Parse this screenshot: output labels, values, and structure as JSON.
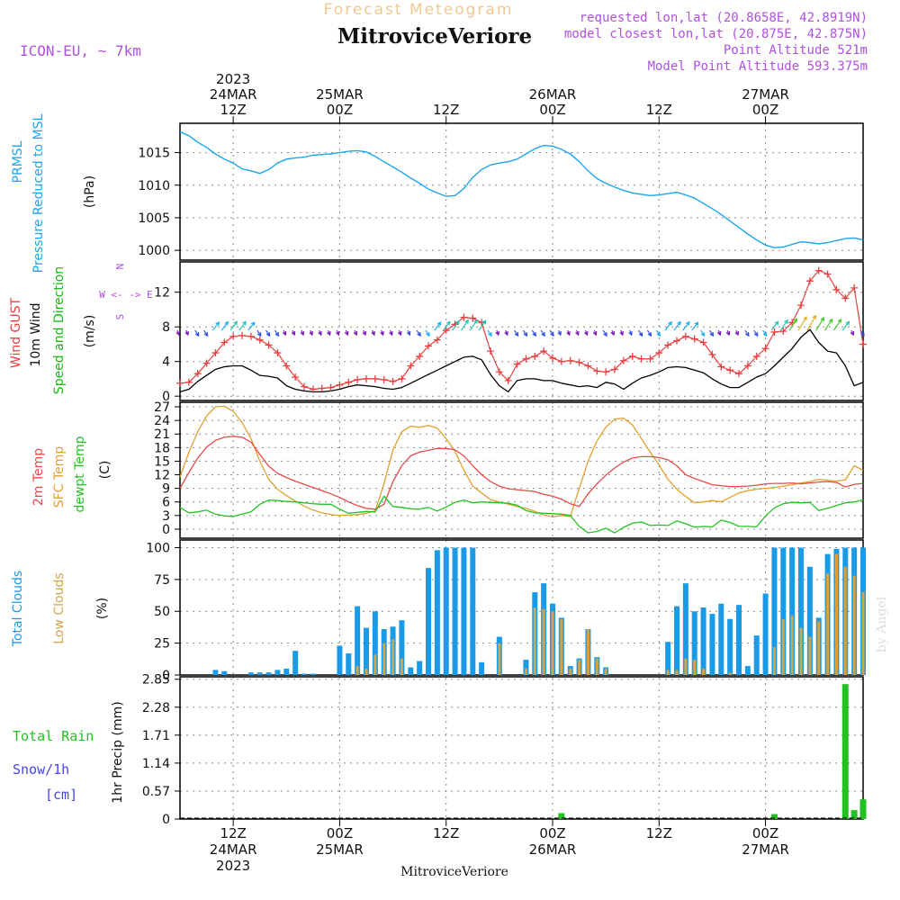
{
  "header": {
    "super_title": "Forecast Meteogram",
    "location": "MitroviceVeriore",
    "model": "ICON-EU, ~ 7km",
    "requested": "requested lon,lat (20.8658E, 42.8919N)",
    "closest": "model closest lon,lat (20.875E, 42.875N)",
    "point_alt": "Point Altitude 521m",
    "model_alt": "Model Point Altitude 593.375m",
    "credit": "by Angel"
  },
  "colors": {
    "pressure": "#1ba5ec",
    "gust": "#e84040",
    "wind": "#000000",
    "wind_label3": "#16b816",
    "temp2m": "#e84a4a",
    "sfc": "#e0a12e",
    "dew": "#22c422",
    "total_cloud": "#1a9be8",
    "low_cloud": "#d0a548",
    "rain": "#22c022",
    "snow": "#4444ee",
    "meta": "#b050e0",
    "title_orange": "#f0c890"
  },
  "time_axis": {
    "top_labels": [
      {
        "h": 12,
        "lines": [
          "2023",
          "24MAR",
          "12Z"
        ]
      },
      {
        "h": 24,
        "lines": [
          "25MAR",
          "00Z"
        ]
      },
      {
        "h": 36,
        "lines": [
          "12Z"
        ]
      },
      {
        "h": 48,
        "lines": [
          "26MAR",
          "00Z"
        ]
      },
      {
        "h": 60,
        "lines": [
          "12Z"
        ]
      },
      {
        "h": 72,
        "lines": [
          "27MAR",
          "00Z"
        ]
      }
    ],
    "bottom_labels": [
      {
        "h": 12,
        "lines": [
          "12Z",
          "24MAR",
          "2023"
        ]
      },
      {
        "h": 24,
        "lines": [
          "00Z",
          "25MAR"
        ]
      },
      {
        "h": 36,
        "lines": [
          "12Z"
        ]
      },
      {
        "h": 48,
        "lines": [
          "00Z",
          "26MAR"
        ]
      },
      {
        "h": 60,
        "lines": [
          "12Z"
        ]
      },
      {
        "h": 72,
        "lines": [
          "00Z",
          "27MAR"
        ]
      }
    ],
    "bottom_caption": "MitroviceVeriore"
  },
  "panels": {
    "pressure": {
      "labels": [
        "PRMSL",
        "Pressure Reduced to MSL"
      ],
      "unit": "(hPa)",
      "ylim": [
        998.5,
        1019.5
      ],
      "ticks": [
        1000,
        1005,
        1010,
        1015
      ]
    },
    "wind": {
      "labels": [
        "Wind GUST",
        "10m Wind",
        "Speed and Direction"
      ],
      "unit": "(m/s)",
      "compass": [
        "N",
        "W <- -> E",
        "S"
      ],
      "ylim": [
        -0.5,
        15.5
      ],
      "ticks": [
        0,
        4,
        8,
        12
      ]
    },
    "temp": {
      "labels": [
        "2m Temp",
        "SFC Temp",
        "dewpt Temp"
      ],
      "unit": "(C)",
      "ylim": [
        -2,
        28
      ],
      "ticks": [
        0,
        3,
        6,
        9,
        12,
        15,
        18,
        21,
        24,
        27
      ]
    },
    "cloud": {
      "labels": [
        "Total Clouds",
        "Low Clouds"
      ],
      "unit": "(%)",
      "ylim": [
        0,
        106
      ],
      "ticks": [
        0,
        25,
        50,
        75,
        100
      ]
    },
    "precip": {
      "labels": [
        "Total Rain",
        "Snow/1h",
        "[cm]"
      ],
      "unit": "1hr Precip (mm)",
      "ylim": [
        0,
        2.9
      ],
      "ticks": [
        "0",
        "0.57",
        "1.14",
        "1.71",
        "2.28",
        "2.85"
      ]
    }
  },
  "chart_data": {
    "type": "meteogram",
    "title": "MitroviceVeriore",
    "x_units": "forecast hour from 2023-03-24 00Z",
    "xlim": [
      6,
      83
    ],
    "pressure": {
      "x": [
        6,
        7,
        8,
        9,
        10,
        11,
        12,
        13,
        14,
        15,
        16,
        17,
        18,
        19,
        20,
        21,
        22,
        23,
        24,
        25,
        26,
        27,
        28,
        29,
        30,
        31,
        32,
        33,
        34,
        35,
        36,
        37,
        38,
        39,
        40,
        41,
        42,
        43,
        44,
        45,
        46,
        47,
        48,
        49,
        50,
        51,
        52,
        53,
        54,
        55,
        56,
        57,
        58,
        59,
        60,
        61,
        62,
        63,
        64,
        65,
        66,
        67,
        68,
        69,
        70,
        71,
        72,
        73,
        74,
        75,
        76,
        77,
        78,
        79,
        80,
        81,
        82,
        83
      ],
      "values": [
        1018.2,
        1017.6,
        1016.6,
        1015.8,
        1014.8,
        1014.0,
        1013.4,
        1012.5,
        1012.2,
        1011.8,
        1012.4,
        1013.4,
        1014.0,
        1014.2,
        1014.3,
        1014.6,
        1014.7,
        1014.8,
        1015.0,
        1015.2,
        1015.3,
        1015.1,
        1014.4,
        1013.6,
        1012.8,
        1012.0,
        1011.1,
        1010.3,
        1009.4,
        1008.8,
        1008.3,
        1008.4,
        1009.5,
        1011.2,
        1012.4,
        1013.1,
        1013.4,
        1013.6,
        1014.0,
        1014.8,
        1015.6,
        1016.1,
        1016.0,
        1015.5,
        1014.8,
        1013.6,
        1012.2,
        1011.0,
        1010.3,
        1009.7,
        1009.2,
        1008.8,
        1008.6,
        1008.4,
        1008.5,
        1008.7,
        1008.9,
        1008.5,
        1008.0,
        1007.2,
        1006.4,
        1005.5,
        1004.5,
        1003.5,
        1002.5,
        1001.6,
        1000.8,
        1000.4,
        1000.5,
        1000.9,
        1001.3,
        1001.2,
        1001.0,
        1001.2,
        1001.5,
        1001.8,
        1001.9,
        1001.6
      ]
    },
    "wind": {
      "x": [
        6,
        7,
        8,
        9,
        10,
        11,
        12,
        13,
        14,
        15,
        16,
        17,
        18,
        19,
        20,
        21,
        22,
        23,
        24,
        25,
        26,
        27,
        28,
        29,
        30,
        31,
        32,
        33,
        34,
        35,
        36,
        37,
        38,
        39,
        40,
        41,
        42,
        43,
        44,
        45,
        46,
        47,
        48,
        49,
        50,
        51,
        52,
        53,
        54,
        55,
        56,
        57,
        58,
        59,
        60,
        61,
        62,
        63,
        64,
        65,
        66,
        67,
        68,
        69,
        70,
        71,
        72,
        73,
        74,
        75,
        76,
        77,
        78,
        79,
        80,
        81,
        82,
        83
      ],
      "gust": [
        1.5,
        1.6,
        2.6,
        3.8,
        5.0,
        6.2,
        6.9,
        7.0,
        6.9,
        6.5,
        5.9,
        5.0,
        3.5,
        2.2,
        1.1,
        0.8,
        0.9,
        1.0,
        1.3,
        1.6,
        1.9,
        2.0,
        2.0,
        1.9,
        1.7,
        2.0,
        3.5,
        4.6,
        5.8,
        6.5,
        7.6,
        8.3,
        9.1,
        9.0,
        8.5,
        5.2,
        2.8,
        1.8,
        3.7,
        4.3,
        4.6,
        5.2,
        4.4,
        4.0,
        4.1,
        3.9,
        3.5,
        2.9,
        2.8,
        3.1,
        4.1,
        4.6,
        4.3,
        4.3,
        5.0,
        5.9,
        6.4,
        6.9,
        6.6,
        6.2,
        4.8,
        3.4,
        3.0,
        2.6,
        3.5,
        4.6,
        5.5,
        7.4,
        7.5,
        8.5,
        10.5,
        13.3,
        14.5,
        14.1,
        12.3,
        11.3,
        12.5,
        6.0
      ],
      "speed": [
        0.5,
        0.8,
        1.7,
        2.4,
        3.1,
        3.4,
        3.5,
        3.5,
        3.0,
        2.4,
        2.3,
        2.1,
        1.2,
        0.8,
        0.6,
        0.5,
        0.5,
        0.6,
        0.8,
        1.1,
        1.3,
        1.2,
        1.1,
        0.9,
        0.8,
        1.0,
        1.5,
        2.0,
        2.5,
        3.0,
        3.5,
        4.0,
        4.5,
        4.6,
        4.2,
        2.5,
        1.2,
        0.5,
        1.8,
        2.0,
        2.0,
        1.8,
        1.8,
        1.5,
        1.3,
        1.1,
        1.2,
        1.0,
        1.6,
        1.4,
        0.8,
        1.5,
        2.1,
        2.4,
        2.8,
        3.3,
        3.4,
        3.3,
        3.0,
        2.7,
        2.0,
        1.4,
        1.0,
        1.0,
        1.6,
        2.2,
        2.6,
        3.5,
        4.5,
        5.5,
        6.8,
        7.7,
        6.2,
        5.2,
        5.0,
        3.5,
        1.2,
        1.6
      ]
    },
    "temperature": {
      "x": [
        6,
        7,
        8,
        9,
        10,
        11,
        12,
        13,
        14,
        15,
        16,
        17,
        18,
        19,
        20,
        21,
        22,
        23,
        24,
        25,
        26,
        27,
        28,
        29,
        30,
        31,
        32,
        33,
        34,
        35,
        36,
        37,
        38,
        39,
        40,
        41,
        42,
        43,
        44,
        45,
        46,
        47,
        48,
        49,
        50,
        51,
        52,
        53,
        54,
        55,
        56,
        57,
        58,
        59,
        60,
        61,
        62,
        63,
        64,
        65,
        66,
        67,
        68,
        69,
        70,
        71,
        72,
        73,
        74,
        75,
        76,
        77,
        78,
        79,
        80,
        81,
        82,
        83
      ],
      "t2m": [
        9.0,
        12.5,
        15.7,
        18.1,
        19.6,
        20.3,
        20.5,
        20.3,
        19.2,
        16.5,
        13.9,
        12.3,
        11.4,
        10.6,
        9.9,
        9.2,
        8.5,
        7.8,
        7.0,
        6.0,
        5.2,
        4.6,
        4.4,
        5.5,
        10.5,
        14.0,
        16.2,
        17.0,
        17.4,
        17.8,
        17.8,
        17.5,
        16.2,
        14.0,
        12.0,
        10.5,
        9.5,
        8.9,
        8.7,
        8.5,
        8.3,
        7.7,
        7.3,
        6.6,
        5.6,
        5.0,
        7.8,
        10.0,
        11.9,
        13.5,
        14.8,
        15.7,
        16.0,
        16.0,
        15.8,
        15.3,
        14.0,
        12.0,
        11.2,
        10.5,
        9.8,
        9.6,
        9.4,
        9.4,
        9.5,
        9.7,
        10.0,
        10.1,
        10.1,
        10.2,
        10.0,
        10.2,
        10.4,
        10.5,
        10.3,
        9.3,
        9.9,
        10.1
      ],
      "sfc": [
        11.5,
        17.0,
        21.5,
        25.0,
        27.0,
        27.1,
        26.0,
        23.5,
        20.0,
        15.0,
        11.0,
        8.8,
        7.4,
        6.2,
        5.1,
        4.2,
        3.6,
        3.2,
        3.0,
        3.1,
        3.2,
        3.5,
        4.0,
        10.0,
        17.5,
        21.5,
        22.7,
        22.5,
        22.9,
        22.3,
        20.0,
        17.2,
        13.0,
        9.5,
        8.0,
        6.5,
        6.0,
        5.5,
        5.0,
        4.6,
        3.9,
        3.1,
        2.7,
        3.0,
        2.8,
        9.0,
        15.0,
        19.5,
        22.5,
        24.3,
        24.5,
        23.0,
        20.0,
        17.0,
        14.2,
        11.0,
        8.8,
        7.2,
        5.8,
        6.0,
        6.3,
        6.0,
        7.0,
        8.0,
        8.5,
        8.8,
        9.0,
        9.2,
        9.5,
        9.8,
        10.2,
        10.5,
        11.0,
        10.8,
        10.6,
        10.9,
        14.0,
        13.0
      ],
      "dew": [
        4.8,
        3.6,
        3.8,
        4.2,
        3.3,
        2.9,
        2.8,
        3.3,
        3.8,
        5.5,
        6.4,
        6.3,
        6.1,
        6.0,
        5.8,
        5.6,
        5.5,
        5.5,
        4.4,
        3.5,
        3.7,
        3.9,
        3.8,
        7.3,
        5.0,
        4.8,
        4.5,
        4.4,
        4.8,
        4.0,
        4.9,
        5.9,
        6.4,
        5.8,
        6.0,
        5.9,
        5.8,
        5.7,
        5.3,
        4.1,
        3.6,
        3.5,
        3.4,
        3.3,
        3.0,
        0.6,
        -0.8,
        -0.5,
        0.2,
        -0.8,
        0.4,
        1.3,
        1.6,
        0.8,
        0.9,
        0.8,
        1.8,
        1.2,
        0.4,
        0.6,
        0.5,
        2.0,
        1.5,
        0.6,
        0.6,
        0.5,
        2.9,
        4.7,
        5.6,
        5.9,
        5.8,
        5.9,
        4.1,
        4.6,
        5.2,
        5.8,
        6.0,
        6.5
      ]
    },
    "clouds": {
      "x": [
        7,
        8,
        9,
        10,
        11,
        12,
        13,
        14,
        15,
        16,
        17,
        18,
        19,
        20,
        21,
        22,
        23,
        24,
        25,
        26,
        27,
        28,
        29,
        30,
        31,
        32,
        33,
        34,
        35,
        36,
        37,
        38,
        39,
        40,
        41,
        42,
        43,
        44,
        45,
        46,
        47,
        48,
        49,
        50,
        51,
        52,
        53,
        54,
        55,
        56,
        57,
        58,
        59,
        60,
        61,
        62,
        63,
        64,
        65,
        66,
        67,
        68,
        69,
        70,
        71,
        72,
        73,
        74,
        75,
        76,
        77,
        78,
        79,
        80,
        81,
        82,
        83
      ],
      "total": [
        0,
        0,
        0,
        4,
        3,
        0,
        0,
        2,
        2,
        2,
        4,
        5,
        19,
        1,
        1,
        0,
        0,
        23,
        17,
        54,
        37,
        50,
        36,
        38,
        43,
        6,
        11,
        84,
        98,
        100,
        100,
        100,
        100,
        10,
        0,
        30,
        0,
        0,
        12,
        65,
        72,
        56,
        45,
        7,
        13,
        36,
        14,
        6,
        0,
        0,
        0,
        0,
        0,
        0,
        26,
        54,
        72,
        50,
        53,
        48,
        56,
        44,
        55,
        7,
        31,
        64,
        100,
        100,
        100,
        100,
        85,
        45,
        95,
        99,
        100,
        100,
        100
      ],
      "low": [
        0,
        0,
        0,
        0,
        0,
        0,
        0,
        0,
        0,
        0,
        0,
        0,
        0,
        0,
        0,
        0,
        0,
        0,
        0,
        7,
        5,
        16,
        25,
        28,
        13,
        0,
        0,
        0,
        0,
        0,
        0,
        0,
        0,
        0,
        0,
        25,
        0,
        0,
        5,
        53,
        52,
        50,
        44,
        5,
        12,
        36,
        13,
        5,
        0,
        0,
        0,
        0,
        0,
        0,
        4,
        4,
        13,
        12,
        5,
        0,
        0,
        2,
        0,
        0,
        0,
        0,
        22,
        44,
        47,
        37,
        30,
        42,
        80,
        95,
        85,
        78,
        65
      ]
    },
    "precip": {
      "x": [
        49,
        73,
        81,
        82,
        83
      ],
      "rain": [
        0.12,
        0.1,
        2.75,
        0.18,
        0.4
      ],
      "snow": [
        0,
        0,
        0,
        0,
        0
      ]
    }
  }
}
